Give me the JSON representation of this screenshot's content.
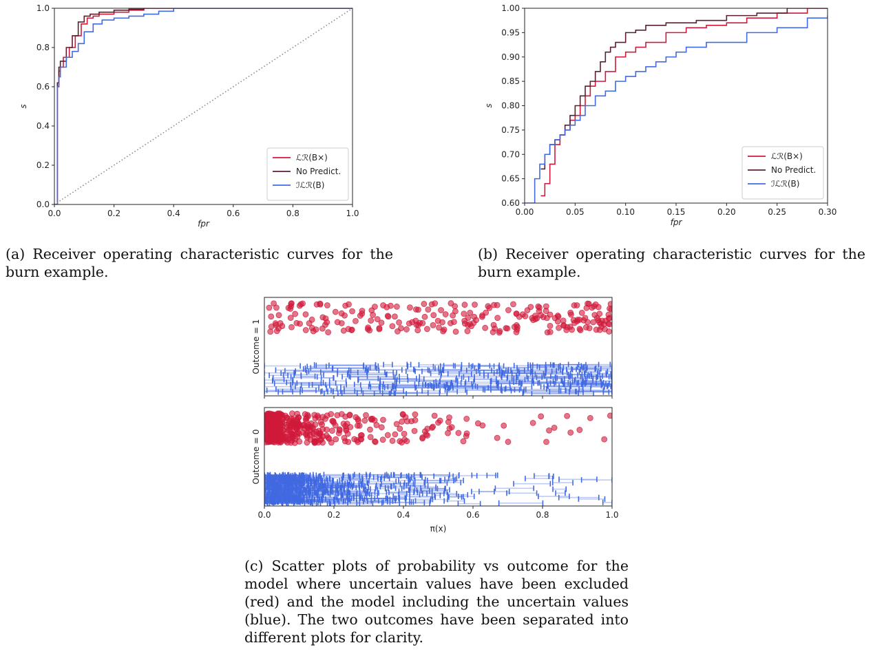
{
  "captions": {
    "a": "(a) Receiver operating characteristic curves for the burn example.",
    "b": "(b) Receiver operating characteristic curves for the burn example.",
    "c": "(c) Scatter plots of probability vs outcome for the model where uncertain values have been excluded (red) and the model including the uncertain values (blue). The two outcomes have been separated into different plots for clarity."
  },
  "colors": {
    "lr": "#d0193a",
    "nopred": "#5a1f2e",
    "ilr": "#4169e1",
    "diag": "#888888"
  },
  "chart_data": [
    {
      "type": "line",
      "xlabel": "fpr",
      "ylabel": "s",
      "xlim": [
        0,
        1
      ],
      "ylim": [
        0,
        1
      ],
      "xticks": [
        "0.0",
        "0.2",
        "0.4",
        "0.6",
        "0.8",
        "1.0"
      ],
      "yticks": [
        "0.0",
        "0.2",
        "0.4",
        "0.6",
        "0.8",
        "1.0"
      ],
      "legend_position": "lower-right",
      "series": [
        {
          "name": "ℒℛ(B×)",
          "key": "lr",
          "x": [
            0,
            0.01,
            0.015,
            0.02,
            0.03,
            0.05,
            0.07,
            0.09,
            0.11,
            0.13,
            0.15,
            0.2,
            0.25,
            0.3,
            1.0
          ],
          "y": [
            0,
            0.6,
            0.68,
            0.7,
            0.75,
            0.8,
            0.86,
            0.92,
            0.95,
            0.96,
            0.97,
            0.98,
            0.99,
            1.0,
            1.0
          ]
        },
        {
          "name": "No Predict.",
          "key": "nopred",
          "x": [
            0,
            0.01,
            0.015,
            0.02,
            0.04,
            0.06,
            0.08,
            0.1,
            0.12,
            0.15,
            0.2,
            0.25,
            0.3,
            1.0
          ],
          "y": [
            0,
            0.62,
            0.7,
            0.73,
            0.8,
            0.86,
            0.93,
            0.96,
            0.97,
            0.98,
            0.99,
            0.995,
            1.0,
            1.0
          ]
        },
        {
          "name": "ℐℒℛ(B)",
          "key": "ilr",
          "x": [
            0,
            0.01,
            0.015,
            0.02,
            0.04,
            0.06,
            0.08,
            0.1,
            0.13,
            0.16,
            0.2,
            0.25,
            0.3,
            0.35,
            0.4,
            1.0
          ],
          "y": [
            0,
            0.6,
            0.65,
            0.7,
            0.75,
            0.78,
            0.82,
            0.88,
            0.92,
            0.94,
            0.95,
            0.96,
            0.97,
            0.985,
            1.0,
            1.0
          ]
        },
        {
          "name": "",
          "key": "diag",
          "style": "dotted",
          "x": [
            0,
            1
          ],
          "y": [
            0,
            1
          ]
        }
      ]
    },
    {
      "type": "line",
      "xlabel": "fpr",
      "ylabel": "s",
      "xlim": [
        0,
        0.3
      ],
      "ylim": [
        0.6,
        1.0
      ],
      "xticks": [
        "0.00",
        "0.05",
        "0.10",
        "0.15",
        "0.20",
        "0.25",
        "0.30"
      ],
      "yticks": [
        "0.60",
        "0.65",
        "0.70",
        "0.75",
        "0.80",
        "0.85",
        "0.90",
        "0.95",
        "1.00"
      ],
      "legend_position": "lower-right",
      "series": [
        {
          "name": "ℒℛ(B×)",
          "key": "lr",
          "x": [
            0.016,
            0.02,
            0.025,
            0.03,
            0.035,
            0.04,
            0.045,
            0.05,
            0.055,
            0.06,
            0.065,
            0.07,
            0.08,
            0.09,
            0.1,
            0.11,
            0.12,
            0.14,
            0.16,
            0.18,
            0.2,
            0.22,
            0.25,
            0.28,
            0.3
          ],
          "y": [
            0.615,
            0.64,
            0.68,
            0.72,
            0.74,
            0.75,
            0.77,
            0.78,
            0.8,
            0.82,
            0.84,
            0.85,
            0.87,
            0.9,
            0.91,
            0.92,
            0.93,
            0.95,
            0.96,
            0.965,
            0.97,
            0.98,
            0.99,
            1.0,
            1.0
          ]
        },
        {
          "name": "No Predict.",
          "key": "nopred",
          "x": [
            0.016,
            0.02,
            0.025,
            0.03,
            0.035,
            0.04,
            0.045,
            0.05,
            0.055,
            0.06,
            0.065,
            0.07,
            0.075,
            0.08,
            0.085,
            0.09,
            0.1,
            0.11,
            0.12,
            0.14,
            0.17,
            0.2,
            0.23,
            0.26,
            0.3
          ],
          "y": [
            0.67,
            0.7,
            0.72,
            0.73,
            0.74,
            0.76,
            0.78,
            0.8,
            0.82,
            0.84,
            0.85,
            0.87,
            0.89,
            0.91,
            0.92,
            0.93,
            0.95,
            0.955,
            0.965,
            0.97,
            0.975,
            0.985,
            0.99,
            1.0,
            1.0
          ]
        },
        {
          "name": "ℐℒℛ(B)",
          "key": "ilr",
          "x": [
            0.0,
            0.006,
            0.01,
            0.015,
            0.02,
            0.025,
            0.03,
            0.035,
            0.04,
            0.045,
            0.05,
            0.055,
            0.06,
            0.07,
            0.08,
            0.09,
            0.1,
            0.11,
            0.12,
            0.13,
            0.14,
            0.15,
            0.16,
            0.18,
            0.2,
            0.22,
            0.25,
            0.28,
            0.3
          ],
          "y": [
            0.6,
            0.6,
            0.65,
            0.68,
            0.7,
            0.72,
            0.73,
            0.74,
            0.75,
            0.76,
            0.77,
            0.78,
            0.8,
            0.82,
            0.83,
            0.85,
            0.86,
            0.87,
            0.88,
            0.89,
            0.9,
            0.91,
            0.92,
            0.93,
            0.93,
            0.95,
            0.96,
            0.98,
            0.985
          ]
        }
      ]
    },
    {
      "type": "scatter",
      "xlabel": "π(x)",
      "xlim": [
        0,
        1
      ],
      "xticks": [
        "0.0",
        "0.2",
        "0.4",
        "0.6",
        "0.8",
        "1.0"
      ],
      "panels": [
        {
          "ylabel": "Outcome = 1",
          "red_density": [
            12,
            10,
            11,
            10,
            9,
            9,
            10,
            10,
            11,
            10,
            12,
            11,
            10,
            10,
            11,
            12,
            13,
            14,
            16,
            24
          ],
          "blue_density": [
            8,
            9,
            10,
            10,
            11,
            11,
            12,
            12,
            13,
            13,
            13,
            13,
            14,
            14,
            15,
            16,
            17,
            18,
            20,
            26
          ]
        },
        {
          "ylabel": "Outcome = 0",
          "red_density": [
            180,
            70,
            42,
            28,
            20,
            14,
            12,
            10,
            9,
            9,
            7,
            5,
            2,
            2,
            1,
            2,
            3,
            2,
            2,
            2
          ],
          "blue_density": [
            190,
            90,
            58,
            40,
            30,
            25,
            20,
            18,
            16,
            14,
            12,
            4,
            2,
            2,
            3,
            3,
            3,
            2,
            3,
            2
          ]
        }
      ]
    }
  ]
}
